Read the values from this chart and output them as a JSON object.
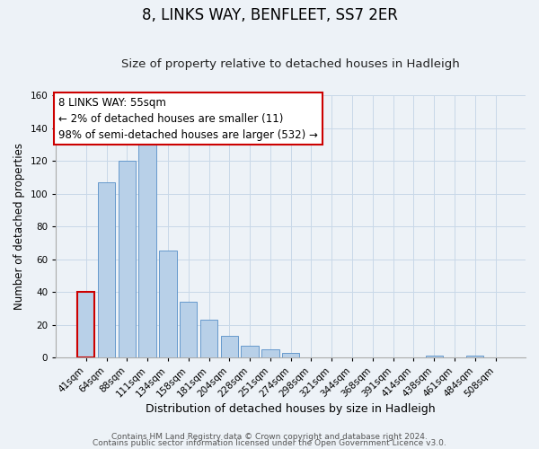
{
  "title": "8, LINKS WAY, BENFLEET, SS7 2ER",
  "subtitle": "Size of property relative to detached houses in Hadleigh",
  "xlabel": "Distribution of detached houses by size in Hadleigh",
  "ylabel": "Number of detached properties",
  "bar_labels": [
    "41sqm",
    "64sqm",
    "88sqm",
    "111sqm",
    "134sqm",
    "158sqm",
    "181sqm",
    "204sqm",
    "228sqm",
    "251sqm",
    "274sqm",
    "298sqm",
    "321sqm",
    "344sqm",
    "368sqm",
    "391sqm",
    "414sqm",
    "438sqm",
    "461sqm",
    "484sqm",
    "508sqm"
  ],
  "bar_values": [
    40,
    107,
    120,
    130,
    65,
    34,
    23,
    13,
    7,
    5,
    3,
    0,
    0,
    0,
    0,
    0,
    0,
    1,
    0,
    1,
    0
  ],
  "bar_color": "#b8d0e8",
  "bar_edge_color": "#6699cc",
  "highlight_bar_index": 0,
  "highlight_edge_color": "#cc0000",
  "ylim": [
    0,
    160
  ],
  "yticks": [
    0,
    20,
    40,
    60,
    80,
    100,
    120,
    140,
    160
  ],
  "annotation_line1": "8 LINKS WAY: 55sqm",
  "annotation_line2": "← 2% of detached houses are smaller (11)",
  "annotation_line3": "98% of semi-detached houses are larger (532) →",
  "annotation_box_edge_color": "#cc0000",
  "annotation_box_bg_color": "#ffffff",
  "footer_line1": "Contains HM Land Registry data © Crown copyright and database right 2024.",
  "footer_line2": "Contains public sector information licensed under the Open Government Licence v3.0.",
  "grid_color": "#c8d8e8",
  "background_color": "#edf2f7",
  "title_fontsize": 12,
  "subtitle_fontsize": 9.5,
  "xlabel_fontsize": 9,
  "ylabel_fontsize": 8.5,
  "tick_fontsize": 7.5,
  "annotation_fontsize": 8.5,
  "footer_fontsize": 6.5
}
